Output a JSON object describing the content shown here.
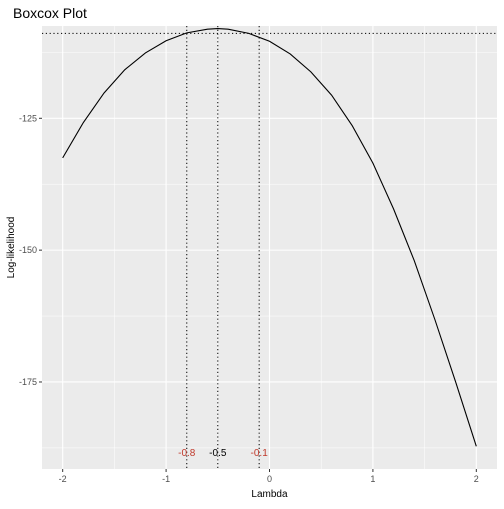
{
  "chart_data": {
    "type": "line",
    "title": "Boxcox Plot",
    "xlabel": "Lambda",
    "ylabel": "Log-likelihood",
    "xlim": [
      -2.2,
      2.2
    ],
    "ylim": [
      -191.5,
      -107.5
    ],
    "x_ticks": [
      -2,
      -1,
      0,
      1,
      2
    ],
    "x_tick_labels": [
      "-2",
      "-1",
      "0",
      "1",
      "2"
    ],
    "y_ticks": [
      -125,
      -150,
      -175
    ],
    "y_tick_labels": [
      "-125",
      "-150",
      "-175"
    ],
    "grid": true,
    "series": [
      {
        "x": [
          -2.0,
          -1.8,
          -1.6,
          -1.4,
          -1.2,
          -1.0,
          -0.8,
          -0.6,
          -0.5,
          -0.4,
          -0.2,
          0.0,
          0.2,
          0.4,
          0.6,
          0.8,
          1.0,
          1.2,
          1.4,
          1.6,
          1.8,
          2.0
        ],
        "y": [
          -132.5,
          -125.8,
          -120.2,
          -115.8,
          -112.6,
          -110.3,
          -108.8,
          -108.1,
          -107.98,
          -108.1,
          -108.9,
          -110.4,
          -112.8,
          -116.2,
          -120.6,
          -126.4,
          -133.5,
          -142.2,
          -152.0,
          -163.2,
          -175.0,
          -187.2
        ]
      }
    ],
    "reference_lines": {
      "horizontal_y": -108.9,
      "vertical_x": [
        -0.8,
        -0.5,
        -0.1
      ]
    },
    "annotations": [
      {
        "x": -0.8,
        "text": "-0.8",
        "color": "#c0392b"
      },
      {
        "x": -0.5,
        "text": "-0.5",
        "color": "#000000"
      },
      {
        "x": -0.1,
        "text": "-0.1",
        "color": "#c0392b"
      }
    ],
    "annotation_y": -189,
    "colors": {
      "panel": "#ebebeb",
      "grid": "#ffffff",
      "line": "#000000",
      "ci_label": "#c0392b"
    }
  }
}
